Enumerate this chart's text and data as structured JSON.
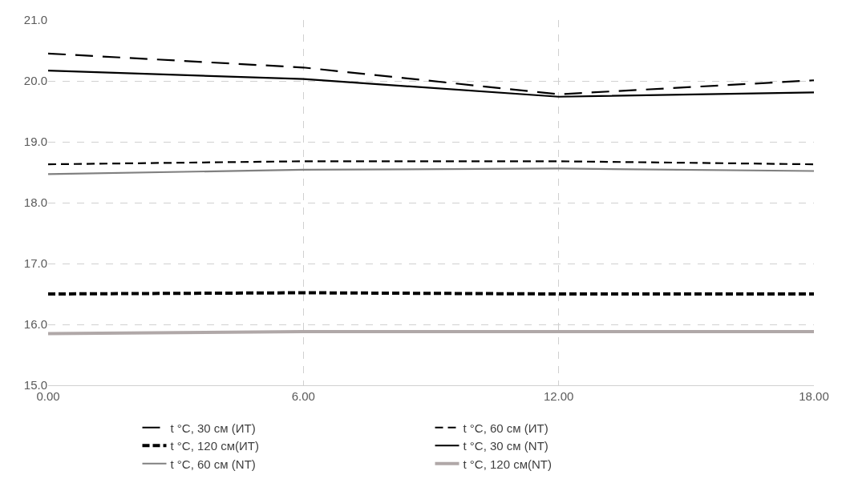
{
  "chart_data": {
    "type": "line",
    "x": [
      0,
      6,
      12,
      18
    ],
    "xlim": [
      0,
      18
    ],
    "xticks": [
      {
        "value": 0,
        "label": "0.00"
      },
      {
        "value": 6,
        "label": "6.00"
      },
      {
        "value": 12,
        "label": "12.00"
      },
      {
        "value": 18,
        "label": "18.00"
      }
    ],
    "ylim": [
      15,
      21
    ],
    "yticks": [
      {
        "value": 15,
        "label": "15.0"
      },
      {
        "value": 16,
        "label": "16.0"
      },
      {
        "value": 17,
        "label": "17.0"
      },
      {
        "value": 18,
        "label": "18.0"
      },
      {
        "value": 19,
        "label": "19.0"
      },
      {
        "value": 20,
        "label": "20.0"
      },
      {
        "value": 21,
        "label": "21.0"
      }
    ],
    "grid": true,
    "legend": "bottom",
    "marker": "none",
    "series": [
      {
        "name": "t °C, 30 см (ИТ)",
        "color": "#000000",
        "line_style": "dashed",
        "values": [
          20.45,
          20.22,
          19.78,
          20.01
        ]
      },
      {
        "name": "t °C, 60 см (ИТ)",
        "color": "#000000",
        "line_style": "dashed",
        "values": [
          18.63,
          18.68,
          18.68,
          18.63
        ]
      },
      {
        "name": "t °C, 120 см(ИТ)",
        "color": "#000000",
        "line_style": "dashed",
        "values": [
          16.5,
          16.52,
          16.5,
          16.5
        ]
      },
      {
        "name": "t °C, 30 см (NT)",
        "color": "#000000",
        "line_style": "solid",
        "values": [
          20.17,
          20.03,
          19.74,
          19.81
        ]
      },
      {
        "name": "t °C, 60 см (NT)",
        "color": "#808080",
        "line_style": "solid",
        "values": [
          18.47,
          18.54,
          18.56,
          18.52
        ]
      },
      {
        "name": "t °C, 120 см(NT)",
        "color": "#b0a8a8",
        "line_style": "solid",
        "values": [
          15.85,
          15.88,
          15.88,
          15.88
        ]
      }
    ]
  }
}
